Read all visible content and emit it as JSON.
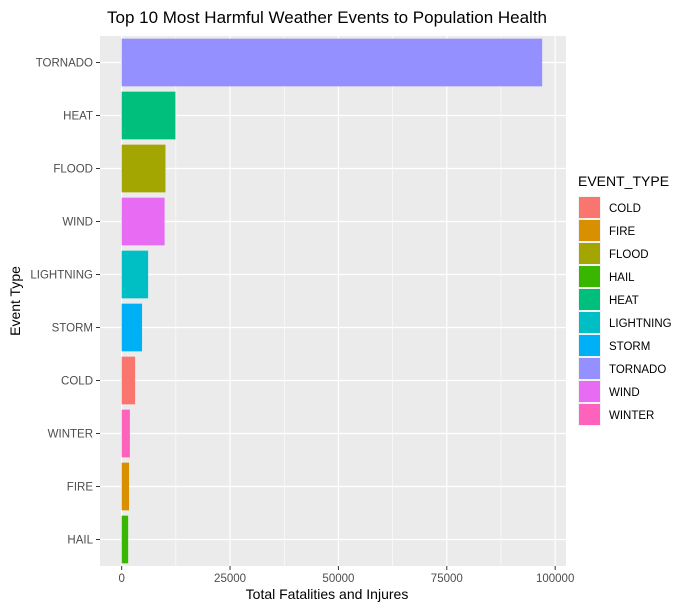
{
  "chart_data": {
    "type": "bar",
    "orientation": "horizontal",
    "title": "Top 10 Most Harmful Weather Events to Population Health",
    "xlabel": "Total Fatalities and Injures",
    "ylabel": "Event Type",
    "categories": [
      "TORNADO",
      "HEAT",
      "FLOOD",
      "WIND",
      "LIGHTNING",
      "STORM",
      "COLD",
      "WINTER",
      "FIRE",
      "HAIL"
    ],
    "values": [
      97000,
      12400,
      10100,
      9900,
      6100,
      4700,
      3100,
      1900,
      1700,
      1500
    ],
    "xlim": [
      0,
      100000
    ],
    "x_ticks": [
      "0",
      "25000",
      "50000",
      "75000",
      "100000"
    ],
    "x_tick_values": [
      0,
      25000,
      50000,
      75000,
      100000
    ],
    "grid": true,
    "legend": {
      "title": "EVENT_TYPE",
      "placement": "right",
      "entries": [
        "COLD",
        "FIRE",
        "FLOOD",
        "HAIL",
        "HEAT",
        "LIGHTNING",
        "STORM",
        "TORNADO",
        "WIND",
        "WINTER"
      ]
    },
    "colors": {
      "COLD": "#F8766D",
      "FIRE": "#D89000",
      "FLOOD": "#A3A500",
      "HAIL": "#39B600",
      "HEAT": "#00BF7D",
      "LIGHTNING": "#00BFC4",
      "STORM": "#00B0F6",
      "TORNADO": "#9590FF",
      "WIND": "#E76BF3",
      "WINTER": "#FF62BC"
    },
    "panel_background": "#EBEBEB",
    "grid_color": "#FFFFFF"
  }
}
